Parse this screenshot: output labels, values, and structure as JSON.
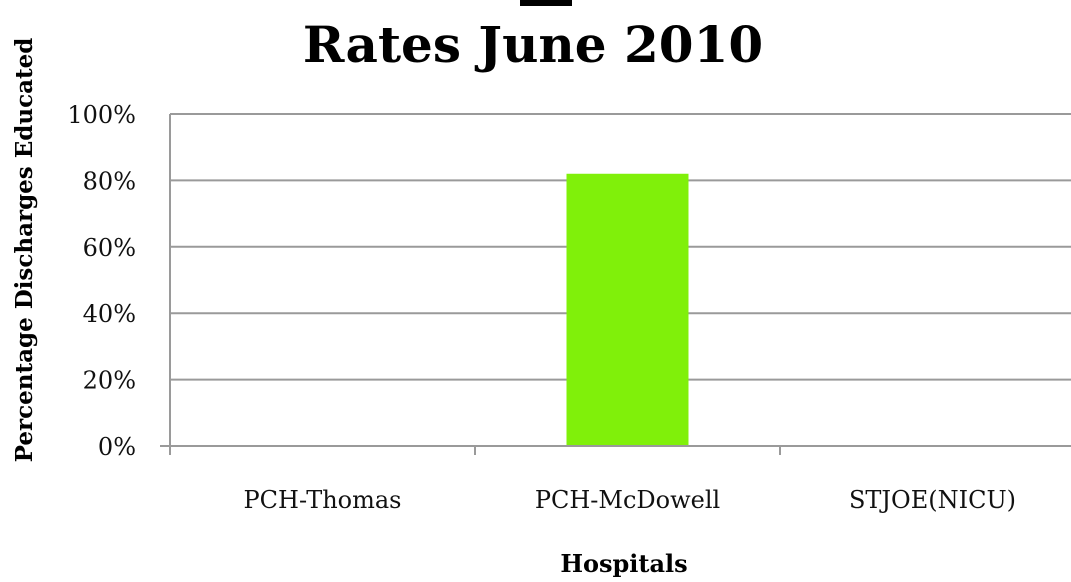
{
  "chart_data": {
    "type": "bar",
    "title_visible_line": "Rates June 2010",
    "xlabel": "Hospitals",
    "ylabel": "Percentage Discharges Educated",
    "categories": [
      "PCH-Thomas",
      "PCH-McDowell",
      "STJOE(NICU)"
    ],
    "values": [
      0,
      0.82,
      0
    ],
    "ylim": [
      0,
      1
    ],
    "yticks": [
      0,
      0.2,
      0.4,
      0.6,
      0.8,
      1.0
    ],
    "ytick_labels": [
      "0%",
      "20%",
      "40%",
      "60%",
      "80%",
      "100%"
    ],
    "grid": true,
    "bar_color": "#80f00a",
    "grid_color": "#9a9a9a"
  }
}
